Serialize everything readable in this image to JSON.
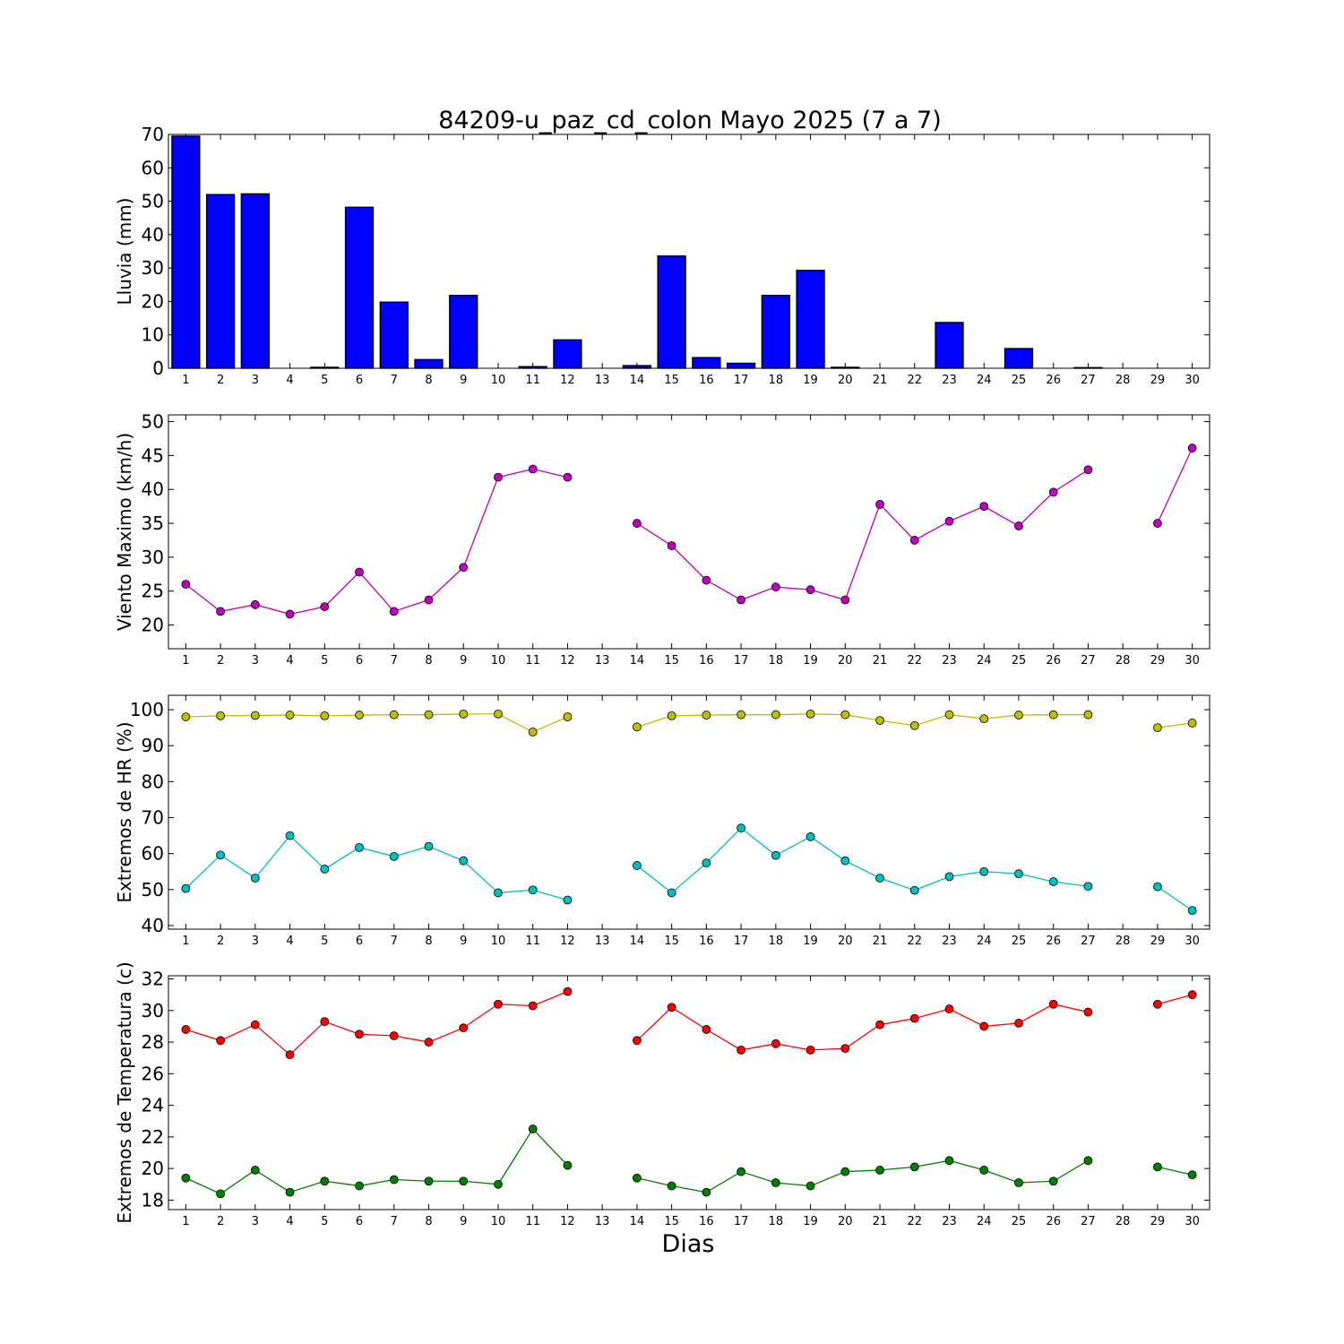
{
  "title": "84209-u_paz_cd_colon Mayo 2025  (7 a 7)",
  "xlabel": "Dias",
  "chart_data": [
    {
      "type": "bar",
      "ylabel": "Lluvia (mm)",
      "ylim": [
        0,
        70
      ],
      "yticks": [
        0,
        10,
        20,
        30,
        40,
        50,
        60,
        70
      ],
      "x": [
        1,
        2,
        3,
        4,
        5,
        6,
        7,
        8,
        9,
        10,
        11,
        12,
        13,
        14,
        15,
        16,
        17,
        18,
        19,
        20,
        21,
        22,
        23,
        24,
        25,
        26,
        27,
        28,
        29,
        30
      ],
      "xticks": [
        1,
        2,
        3,
        4,
        5,
        6,
        7,
        8,
        9,
        10,
        11,
        12,
        13,
        14,
        15,
        16,
        17,
        18,
        19,
        20,
        21,
        22,
        23,
        24,
        25,
        26,
        27,
        28,
        29,
        30
      ],
      "series": [
        {
          "color": "#0000ff",
          "values": [
            69.5,
            52,
            52.2,
            0,
            0.3,
            48.2,
            19.8,
            2.6,
            21.8,
            0,
            0.5,
            8.5,
            0,
            0.8,
            33.6,
            3.2,
            1.5,
            21.8,
            29.3,
            0.3,
            0,
            0,
            13.7,
            0,
            5.9,
            0,
            0.2,
            0,
            0,
            0
          ]
        }
      ]
    },
    {
      "type": "line",
      "ylabel": "Viento Maximo (km/h)",
      "ylim": [
        16.5,
        51
      ],
      "yticks": [
        20,
        25,
        30,
        35,
        40,
        45,
        50
      ],
      "x": [
        1,
        2,
        3,
        4,
        5,
        6,
        7,
        8,
        9,
        10,
        11,
        12,
        13,
        14,
        15,
        16,
        17,
        18,
        19,
        20,
        21,
        22,
        23,
        24,
        25,
        26,
        27,
        28,
        29,
        30
      ],
      "xticks": [
        1,
        2,
        3,
        4,
        5,
        6,
        7,
        8,
        9,
        10,
        11,
        12,
        13,
        14,
        15,
        16,
        17,
        18,
        19,
        20,
        21,
        22,
        23,
        24,
        25,
        26,
        27,
        28,
        29,
        30
      ],
      "series": [
        {
          "color": "#bf00bf",
          "values": [
            26,
            22,
            23,
            21.6,
            22.7,
            27.8,
            22,
            23.7,
            28.5,
            41.8,
            43,
            41.8,
            null,
            35,
            31.7,
            26.6,
            23.7,
            25.6,
            25.2,
            23.7,
            37.8,
            32.5,
            35.3,
            37.5,
            34.6,
            39.6,
            42.9,
            null,
            35,
            46.1
          ]
        }
      ]
    },
    {
      "type": "line",
      "ylabel": "Extremos de HR (%)",
      "ylim": [
        39,
        104
      ],
      "yticks": [
        40,
        50,
        60,
        70,
        80,
        90,
        100
      ],
      "x": [
        1,
        2,
        3,
        4,
        5,
        6,
        7,
        8,
        9,
        10,
        11,
        12,
        13,
        14,
        15,
        16,
        17,
        18,
        19,
        20,
        21,
        22,
        23,
        24,
        25,
        26,
        27,
        28,
        29,
        30
      ],
      "xticks": [
        1,
        2,
        3,
        4,
        5,
        6,
        7,
        8,
        9,
        10,
        11,
        12,
        13,
        14,
        15,
        16,
        17,
        18,
        19,
        20,
        21,
        22,
        23,
        24,
        25,
        26,
        27,
        28,
        29,
        30
      ],
      "series": [
        {
          "color": "#bfbf00",
          "values": [
            98,
            98.3,
            98.4,
            98.5,
            98.3,
            98.5,
            98.6,
            98.6,
            98.8,
            98.8,
            93.8,
            98,
            null,
            95.2,
            98.3,
            98.5,
            98.6,
            98.6,
            98.8,
            98.6,
            97,
            95.6,
            98.6,
            97.5,
            98.5,
            98.6,
            98.6,
            null,
            95,
            96.3
          ]
        },
        {
          "color": "#00bfbf",
          "values": [
            50.3,
            59.6,
            53.2,
            65,
            55.7,
            61.7,
            59.2,
            62,
            58,
            49.1,
            49.9,
            47.1,
            null,
            56.7,
            49.1,
            57.4,
            67.1,
            59.5,
            64.7,
            58,
            53.2,
            49.8,
            53.6,
            55,
            54.4,
            52.2,
            50.9,
            null,
            50.8,
            44.2
          ]
        }
      ]
    },
    {
      "type": "line",
      "ylabel": "Extremos de Temperatura (c)",
      "ylim": [
        17.4,
        32.2
      ],
      "yticks": [
        18,
        20,
        22,
        24,
        26,
        28,
        30,
        32
      ],
      "x": [
        1,
        2,
        3,
        4,
        5,
        6,
        7,
        8,
        9,
        10,
        11,
        12,
        13,
        14,
        15,
        16,
        17,
        18,
        19,
        20,
        21,
        22,
        23,
        24,
        25,
        26,
        27,
        28,
        29,
        30
      ],
      "xticks": [
        1,
        2,
        3,
        4,
        5,
        6,
        7,
        8,
        9,
        10,
        11,
        12,
        13,
        14,
        15,
        16,
        17,
        18,
        19,
        20,
        21,
        22,
        23,
        24,
        25,
        26,
        27,
        28,
        29,
        30
      ],
      "series": [
        {
          "color": "#ff0000",
          "values": [
            28.8,
            28.1,
            29.1,
            27.2,
            29.3,
            28.5,
            28.4,
            28,
            28.9,
            30.4,
            30.3,
            31.2,
            null,
            28.1,
            30.2,
            28.8,
            27.5,
            27.9,
            27.5,
            27.6,
            29.1,
            29.5,
            30.1,
            29,
            29.2,
            30.4,
            29.9,
            null,
            30.4,
            31
          ]
        },
        {
          "color": "#007f00",
          "values": [
            19.4,
            18.4,
            19.9,
            18.5,
            19.2,
            18.9,
            19.3,
            19.2,
            19.2,
            19,
            22.5,
            20.2,
            null,
            19.4,
            18.9,
            18.5,
            19.8,
            19.1,
            18.9,
            19.8,
            19.9,
            20.1,
            20.5,
            19.9,
            19.1,
            19.2,
            20.5,
            null,
            20.1,
            19.6
          ]
        }
      ]
    }
  ]
}
